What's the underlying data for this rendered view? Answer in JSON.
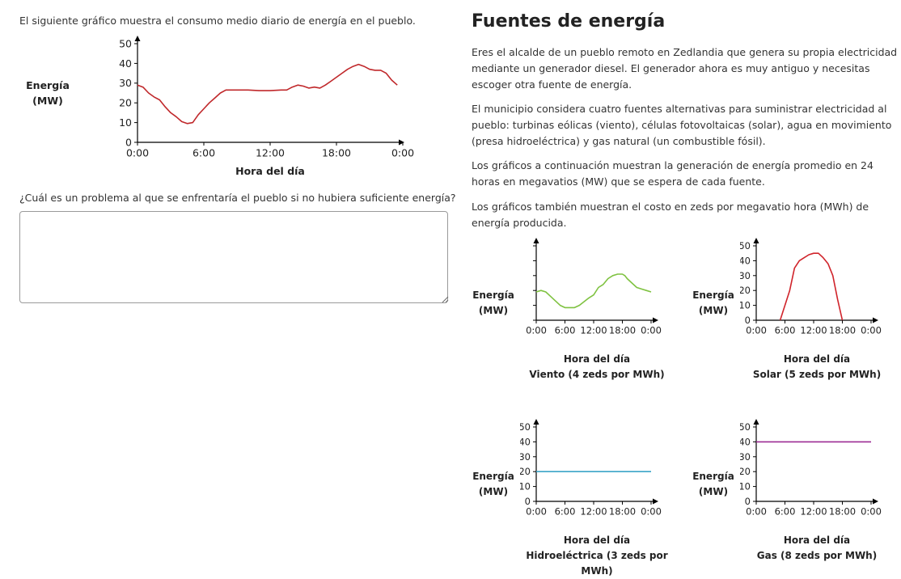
{
  "left": {
    "intro": "El siguiente gráfico muestra el consumo medio diario de energía en el pueblo.",
    "ylabel_line1": "Energía",
    "ylabel_line2": "(MW)",
    "xlabel": "Hora del día",
    "question": "¿Cuál es un problema al que se enfrentaría el pueblo si no hubiera suficiente energía?",
    "answer_value": ""
  },
  "right": {
    "title": "Fuentes de energía",
    "p1": "Eres el alcalde de un pueblo remoto en Zedlandia que genera su propia electricidad mediante un generador diesel. El generador ahora es muy antiguo y necesitas escoger otra fuente de energía.",
    "p2": "El municipio considera cuatro fuentes alternativas para suministrar electricidad al pueblo: turbinas eólicas (viento), células fotovoltaicas (solar), agua en movimiento (presa hidroeléctrica) y gas natural (un combustible fósil).",
    "p3": "Los gráficos a continuación muestran la generación de energía promedio en 24 horas en megavatios (MW) que se espera de cada fuente.",
    "p4": "Los gráficos también muestran el costo en zeds por megavatio hora (MWh) de energía producida."
  },
  "chart_data": [
    {
      "type": "line",
      "title": "",
      "xlabel": "Hora del día",
      "ylabel": "Energía (MW)",
      "xticks": [
        "0:00",
        "6:00",
        "12:00",
        "18:00",
        "0:00"
      ],
      "yticks": [
        0,
        10,
        20,
        30,
        40,
        50
      ],
      "xlim": [
        0,
        24
      ],
      "ylim": [
        0,
        50
      ],
      "color": "#c0282b",
      "x": [
        0,
        0.5,
        1,
        1.5,
        2,
        2.5,
        3,
        3.5,
        4,
        4.5,
        5,
        5.5,
        6,
        6.5,
        7,
        7.5,
        8,
        9,
        10,
        11,
        12,
        13,
        13.5,
        14,
        14.5,
        15,
        15.5,
        16,
        16.5,
        17,
        17.5,
        18,
        18.5,
        19,
        19.5,
        20,
        20.5,
        21,
        21.5,
        22,
        22.5,
        23,
        23.5
      ],
      "y": [
        29,
        28,
        25,
        23,
        21.5,
        18,
        15,
        13,
        10.5,
        9.5,
        10,
        14,
        17,
        20,
        22.5,
        25,
        26.5,
        26.5,
        26.5,
        26.2,
        26.2,
        26.5,
        26.5,
        28,
        29,
        28.5,
        27.5,
        28,
        27.5,
        29,
        31,
        33,
        35,
        37,
        38.5,
        39.5,
        38.5,
        37,
        36.5,
        36.5,
        35,
        31.5,
        29
      ]
    },
    {
      "type": "line",
      "title": "",
      "xlabel": "Hora del día",
      "ylabel": "Energía (MW)",
      "xticks": [
        "0:00",
        "6:00",
        "12:00",
        "18:00",
        "0:00"
      ],
      "yticks": [],
      "xlim": [
        0,
        24
      ],
      "ylim": [
        0,
        50
      ],
      "color": "#7fc241",
      "caption": "Viento (4 zeds por MWh)",
      "x": [
        0,
        1,
        2,
        3,
        4,
        5,
        6,
        7,
        8,
        9,
        10,
        11,
        12,
        13,
        14,
        15,
        16,
        17,
        18,
        18.5,
        19,
        20,
        21,
        22,
        23,
        24
      ],
      "y": [
        19,
        20,
        19,
        16,
        13,
        10,
        8.5,
        8.5,
        8.5,
        10,
        12.5,
        15,
        17,
        22,
        24,
        28,
        30,
        31,
        31,
        30,
        28,
        25,
        22,
        21,
        20,
        19
      ]
    },
    {
      "type": "line",
      "title": "",
      "xlabel": "Hora del día",
      "ylabel": "Energía (MW)",
      "xticks": [
        "0:00",
        "6:00",
        "12:00",
        "18:00",
        "0:00"
      ],
      "yticks": [
        0,
        10,
        20,
        30,
        40,
        50
      ],
      "xlim": [
        0,
        24
      ],
      "ylim": [
        0,
        50
      ],
      "color": "#d0242b",
      "caption": "Solar (5 zeds por MWh)",
      "x": [
        5,
        6,
        7,
        8,
        9,
        10,
        11,
        12,
        13,
        14,
        15,
        16,
        17,
        18
      ],
      "y": [
        0,
        10,
        20,
        35,
        40,
        42,
        44,
        45,
        45,
        42,
        38,
        30,
        14,
        0
      ]
    },
    {
      "type": "line",
      "title": "",
      "xlabel": "Hora del día",
      "ylabel": "Energía (MW)",
      "xticks": [
        "0:00",
        "6:00",
        "12:00",
        "18:00",
        "0:00"
      ],
      "yticks": [
        0,
        10,
        20,
        30,
        40,
        50
      ],
      "xlim": [
        0,
        24
      ],
      "ylim": [
        0,
        50
      ],
      "color": "#3aa4c8",
      "caption": "Hidroeléctrica (3 zeds por MWh)",
      "x": [
        0,
        24
      ],
      "y": [
        20,
        20
      ]
    },
    {
      "type": "line",
      "title": "",
      "xlabel": "Hora del día",
      "ylabel": "Energía (MW)",
      "xticks": [
        "0:00",
        "6:00",
        "12:00",
        "18:00",
        "0:00"
      ],
      "yticks": [
        0,
        10,
        20,
        30,
        40,
        50
      ],
      "xlim": [
        0,
        24
      ],
      "ylim": [
        0,
        50
      ],
      "color": "#9b2b94",
      "caption": "Gas (8 zeds por MWh)",
      "x": [
        0,
        24
      ],
      "y": [
        40,
        40
      ]
    }
  ]
}
